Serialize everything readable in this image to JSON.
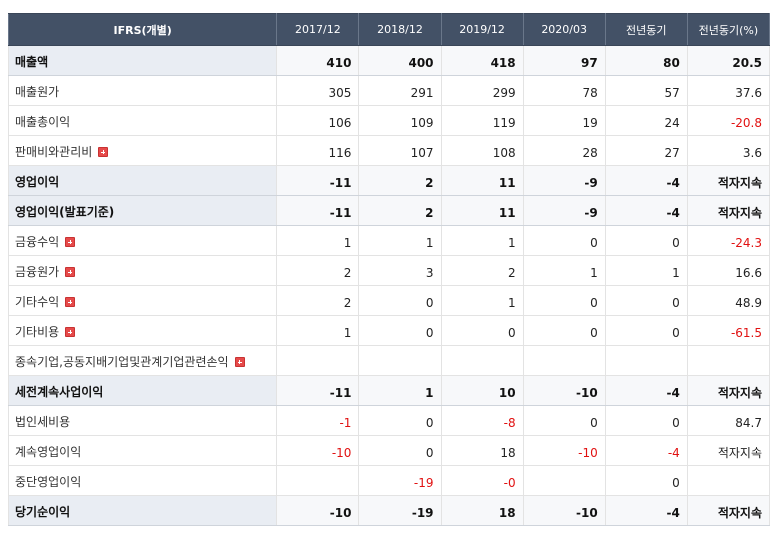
{
  "header": {
    "first": "IFRS(개별)",
    "columns": [
      "2017/12",
      "2018/12",
      "2019/12",
      "2020/03",
      "전년동기",
      "전년동기(%)"
    ]
  },
  "rows": [
    {
      "label": "매출액",
      "bold": true,
      "expand": false,
      "cells": [
        "410",
        "400",
        "418",
        "97",
        "80",
        "20.5"
      ]
    },
    {
      "label": "매출원가",
      "bold": false,
      "expand": false,
      "cells": [
        "305",
        "291",
        "299",
        "78",
        "57",
        "37.6"
      ]
    },
    {
      "label": "매출총이익",
      "bold": false,
      "expand": false,
      "cells": [
        "106",
        "109",
        "119",
        "19",
        "24",
        "-20.8"
      ]
    },
    {
      "label": "판매비와관리비",
      "bold": false,
      "expand": true,
      "cells": [
        "116",
        "107",
        "108",
        "28",
        "27",
        "3.6"
      ]
    },
    {
      "label": "영업이익",
      "bold": true,
      "expand": false,
      "cells": [
        "-11",
        "2",
        "11",
        "-9",
        "-4",
        "적자지속"
      ]
    },
    {
      "label": "영업이익(발표기준)",
      "bold": true,
      "expand": false,
      "cells": [
        "-11",
        "2",
        "11",
        "-9",
        "-4",
        "적자지속"
      ]
    },
    {
      "label": "금융수익",
      "bold": false,
      "expand": true,
      "cells": [
        "1",
        "1",
        "1",
        "0",
        "0",
        "-24.3"
      ]
    },
    {
      "label": "금융원가",
      "bold": false,
      "expand": true,
      "cells": [
        "2",
        "3",
        "2",
        "1",
        "1",
        "16.6"
      ]
    },
    {
      "label": "기타수익",
      "bold": false,
      "expand": true,
      "cells": [
        "2",
        "0",
        "1",
        "0",
        "0",
        "48.9"
      ]
    },
    {
      "label": "기타비용",
      "bold": false,
      "expand": true,
      "cells": [
        "1",
        "0",
        "0",
        "0",
        "0",
        "-61.5"
      ]
    },
    {
      "label": "종속기업,공동지배기업및관계기업관련손익",
      "bold": false,
      "expand": true,
      "cells": [
        "",
        "",
        "",
        "",
        "",
        ""
      ]
    },
    {
      "label": "세전계속사업이익",
      "bold": true,
      "expand": false,
      "cells": [
        "-11",
        "1",
        "10",
        "-10",
        "-4",
        "적자지속"
      ]
    },
    {
      "label": "법인세비용",
      "bold": false,
      "expand": false,
      "cells": [
        "-1",
        "0",
        "-8",
        "0",
        "0",
        "84.7"
      ]
    },
    {
      "label": "계속영업이익",
      "bold": false,
      "expand": false,
      "cells": [
        "-10",
        "0",
        "18",
        "-10",
        "-4",
        "적자지속"
      ]
    },
    {
      "label": "중단영업이익",
      "bold": false,
      "expand": false,
      "cells": [
        "",
        "-19",
        "-0",
        "",
        "0",
        ""
      ]
    },
    {
      "label": "당기순이익",
      "bold": true,
      "expand": false,
      "cells": [
        "-10",
        "-19",
        "18",
        "-10",
        "-4",
        "적자지속"
      ]
    }
  ]
}
